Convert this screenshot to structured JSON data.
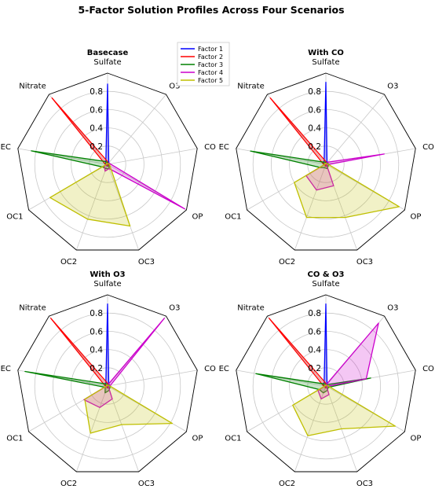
{
  "title": "5-Factor Solution Profiles Across Four Scenarios",
  "legend": {
    "placement": "right of top-left panel",
    "entries": [
      {
        "label": "Factor 1",
        "color": "#0000ff"
      },
      {
        "label": "Factor 2",
        "color": "#ff0000"
      },
      {
        "label": "Factor 3",
        "color": "#008000"
      },
      {
        "label": "Factor 4",
        "color": "#cc00cc"
      },
      {
        "label": "Factor 5",
        "color": "#bfbf00"
      }
    ]
  },
  "chart_data": [
    {
      "type": "radar",
      "title": "Basecase",
      "axes": [
        "Sulfate",
        "O3",
        "CO",
        "OP",
        "OC3",
        "OC2",
        "OC1",
        "EC",
        "Nitrate"
      ],
      "radial_ticks": [
        "0.2",
        "0.4",
        "0.6",
        "0.8"
      ],
      "rlim": [
        0,
        1.0
      ],
      "grid": true,
      "series": [
        {
          "name": "Factor 1",
          "values": [
            0.88,
            0.02,
            0.01,
            0.01,
            0.02,
            0.02,
            0.01,
            0.02,
            0.03
          ]
        },
        {
          "name": "Factor 2",
          "values": [
            0.03,
            0.01,
            0.01,
            0.02,
            0.02,
            0.01,
            0.02,
            0.03,
            0.95
          ]
        },
        {
          "name": "Factor 3",
          "values": [
            0.02,
            0.02,
            0.03,
            0.02,
            0.05,
            0.05,
            0.06,
            0.85,
            0.04
          ]
        },
        {
          "name": "Factor 4",
          "values": [
            0.01,
            0.02,
            0.03,
            0.98,
            0.05,
            0.08,
            0.04,
            0.01,
            0.01
          ]
        },
        {
          "name": "Factor 5",
          "values": [
            0.01,
            0.01,
            0.02,
            0.03,
            0.72,
            0.64,
            0.73,
            0.01,
            0.02
          ]
        }
      ]
    },
    {
      "type": "radar",
      "title": "With CO",
      "axes": [
        "Sulfate",
        "O3",
        "CO",
        "OP",
        "OC3",
        "OC2",
        "OC1",
        "EC",
        "Nitrate"
      ],
      "radial_ticks": [
        "0.2",
        "0.4",
        "0.6",
        "0.8"
      ],
      "rlim": [
        0,
        1.0
      ],
      "grid": true,
      "series": [
        {
          "name": "Factor 1",
          "values": [
            0.9,
            0.02,
            0.01,
            0.01,
            0.02,
            0.02,
            0.01,
            0.02,
            0.03
          ]
        },
        {
          "name": "Factor 2",
          "values": [
            0.03,
            0.02,
            0.01,
            0.01,
            0.02,
            0.02,
            0.01,
            0.03,
            0.95
          ]
        },
        {
          "name": "Factor 3",
          "values": [
            0.02,
            0.02,
            0.03,
            0.03,
            0.05,
            0.04,
            0.07,
            0.84,
            0.03
          ]
        },
        {
          "name": "Factor 4",
          "values": [
            0.01,
            0.03,
            0.65,
            0.01,
            0.25,
            0.3,
            0.25,
            0.01,
            0.01
          ]
        },
        {
          "name": "Factor 5",
          "values": [
            0.01,
            0.01,
            0.02,
            0.93,
            0.62,
            0.62,
            0.4,
            0.01,
            0.02
          ]
        }
      ]
    },
    {
      "type": "radar",
      "title": "With O3",
      "axes": [
        "Sulfate",
        "O3",
        "CO",
        "OP",
        "OC3",
        "OC2",
        "OC1",
        "EC",
        "Nitrate"
      ],
      "radial_ticks": [
        "0.2",
        "0.4",
        "0.6",
        "0.8"
      ],
      "rlim": [
        0,
        1.0
      ],
      "grid": true,
      "series": [
        {
          "name": "Factor 1",
          "values": [
            0.9,
            0.02,
            0.01,
            0.01,
            0.02,
            0.02,
            0.01,
            0.02,
            0.03
          ]
        },
        {
          "name": "Factor 2",
          "values": [
            0.03,
            0.02,
            0.01,
            0.01,
            0.02,
            0.02,
            0.01,
            0.03,
            0.97
          ]
        },
        {
          "name": "Factor 3",
          "values": [
            0.02,
            0.02,
            0.03,
            0.03,
            0.05,
            0.08,
            0.03,
            0.92,
            0.03
          ]
        },
        {
          "name": "Factor 4",
          "values": [
            0.01,
            0.97,
            0.03,
            0.01,
            0.15,
            0.25,
            0.3,
            0.01,
            0.01
          ]
        },
        {
          "name": "Factor 5",
          "values": [
            0.01,
            0.01,
            0.02,
            0.82,
            0.45,
            0.55,
            0.29,
            0.01,
            0.02
          ]
        }
      ]
    },
    {
      "type": "radar",
      "title": "CO & O3",
      "axes": [
        "Sulfate",
        "O3",
        "CO",
        "OP",
        "OC3",
        "OC2",
        "OC1",
        "EC",
        "Nitrate"
      ],
      "radial_ticks": [
        "0.2",
        "0.4",
        "0.6",
        "0.8"
      ],
      "rlim": [
        0,
        1.0
      ],
      "grid": true,
      "series": [
        {
          "name": "Factor 1",
          "values": [
            0.9,
            0.02,
            0.01,
            0.01,
            0.02,
            0.02,
            0.01,
            0.02,
            0.03
          ]
        },
        {
          "name": "Factor 2",
          "values": [
            0.03,
            0.02,
            0.01,
            0.01,
            0.02,
            0.02,
            0.01,
            0.03,
            0.97
          ]
        },
        {
          "name": "Factor 3",
          "values": [
            0.02,
            0.02,
            0.5,
            0.03,
            0.05,
            0.08,
            0.08,
            0.78,
            0.03
          ]
        },
        {
          "name": "Factor 4",
          "values": [
            0.01,
            0.9,
            0.45,
            0.01,
            0.1,
            0.15,
            0.1,
            0.01,
            0.01
          ]
        },
        {
          "name": "Factor 5",
          "values": [
            0.01,
            0.01,
            0.02,
            0.88,
            0.5,
            0.58,
            0.42,
            0.01,
            0.02
          ]
        }
      ]
    }
  ]
}
